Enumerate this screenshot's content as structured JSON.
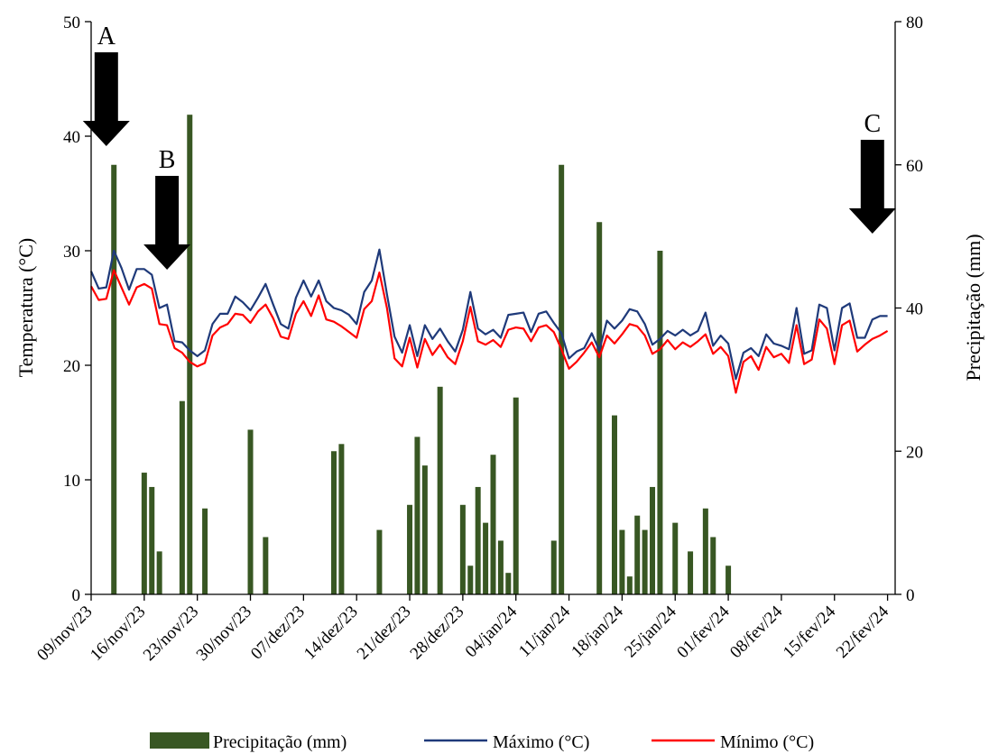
{
  "chart_data": {
    "type": "bar+line",
    "ylabel_left": "Temperatura  (°C)",
    "ylabel_right": "Precipitação (mm)",
    "left_axis": {
      "min": 0,
      "max": 50,
      "ticks": [
        0,
        10,
        20,
        30,
        40,
        50
      ],
      "tick_labels": [
        "0",
        "10",
        "20",
        "30",
        "40",
        "50"
      ]
    },
    "right_axis": {
      "min": 0,
      "max": 80,
      "ticks": [
        0,
        20,
        40,
        60,
        80
      ],
      "tick_labels": [
        "0",
        "20",
        "40",
        "60",
        "80"
      ]
    },
    "x_axis": {
      "start_date": "2023-11-09",
      "end_date": "2024-02-23",
      "tick_labels": [
        "09/nov/23",
        "16/nov/23",
        "23/nov/23",
        "30/nov/23",
        "07/dez/23",
        "14/dez/23",
        "21/dez/23",
        "28/dez/23",
        "04/jan/24",
        "11/jan/24",
        "18/jan/24",
        "25/jan/24",
        "01/fev/24",
        "08/fev/24",
        "15/fev/24",
        "22/fev/24"
      ],
      "tick_dates": [
        "2023-11-09",
        "2023-11-16",
        "2023-11-23",
        "2023-11-30",
        "2023-12-07",
        "2023-12-14",
        "2023-12-21",
        "2023-12-28",
        "2024-01-04",
        "2024-01-11",
        "2024-01-18",
        "2024-01-25",
        "2024-02-01",
        "2024-02-08",
        "2024-02-15",
        "2024-02-22"
      ]
    },
    "series": [
      {
        "name": "Precipitação (mm)",
        "type": "bar",
        "axis": "right",
        "color": "#385723",
        "points": [
          {
            "date": "2023-11-12",
            "value": 60
          },
          {
            "date": "2023-11-16",
            "value": 17
          },
          {
            "date": "2023-11-17",
            "value": 15
          },
          {
            "date": "2023-11-18",
            "value": 6
          },
          {
            "date": "2023-11-21",
            "value": 27
          },
          {
            "date": "2023-11-22",
            "value": 67
          },
          {
            "date": "2023-11-24",
            "value": 12
          },
          {
            "date": "2023-11-30",
            "value": 23
          },
          {
            "date": "2023-12-02",
            "value": 8
          },
          {
            "date": "2023-12-11",
            "value": 20
          },
          {
            "date": "2023-12-12",
            "value": 21
          },
          {
            "date": "2023-12-17",
            "value": 9
          },
          {
            "date": "2023-12-21",
            "value": 12.5
          },
          {
            "date": "2023-12-22",
            "value": 22
          },
          {
            "date": "2023-12-23",
            "value": 18
          },
          {
            "date": "2023-12-25",
            "value": 29
          },
          {
            "date": "2023-12-28",
            "value": 12.5
          },
          {
            "date": "2023-12-29",
            "value": 4
          },
          {
            "date": "2023-12-30",
            "value": 15
          },
          {
            "date": "2023-12-31",
            "value": 10
          },
          {
            "date": "2024-01-01",
            "value": 19.5
          },
          {
            "date": "2024-01-02",
            "value": 7.5
          },
          {
            "date": "2024-01-03",
            "value": 3
          },
          {
            "date": "2024-01-04",
            "value": 27.5
          },
          {
            "date": "2024-01-09",
            "value": 7.5
          },
          {
            "date": "2024-01-10",
            "value": 60
          },
          {
            "date": "2024-01-15",
            "value": 52
          },
          {
            "date": "2024-01-17",
            "value": 25
          },
          {
            "date": "2024-01-18",
            "value": 9
          },
          {
            "date": "2024-01-19",
            "value": 2.5
          },
          {
            "date": "2024-01-20",
            "value": 11
          },
          {
            "date": "2024-01-21",
            "value": 9
          },
          {
            "date": "2024-01-22",
            "value": 15
          },
          {
            "date": "2024-01-23",
            "value": 48
          },
          {
            "date": "2024-01-25",
            "value": 10
          },
          {
            "date": "2024-01-27",
            "value": 6
          },
          {
            "date": "2024-01-29",
            "value": 12
          },
          {
            "date": "2024-01-30",
            "value": 8
          },
          {
            "date": "2024-02-01",
            "value": 4
          }
        ]
      },
      {
        "name": "Máximo (°C)",
        "type": "line",
        "axis": "left",
        "color": "#1f3a7a",
        "values": [
          28.2,
          26.7,
          26.8,
          30.0,
          28.5,
          26.6,
          28.4,
          28.4,
          27.9,
          25.0,
          25.3,
          22.1,
          22.0,
          21.3,
          20.8,
          21.3,
          23.6,
          24.5,
          24.5,
          26.0,
          25.5,
          24.8,
          25.9,
          27.1,
          25.3,
          23.6,
          23.2,
          25.9,
          27.4,
          26.0,
          27.4,
          25.6,
          25.0,
          24.8,
          24.4,
          23.6,
          26.4,
          27.4,
          30.1,
          26.2,
          22.5,
          21.1,
          23.5,
          20.8,
          23.5,
          22.3,
          23.2,
          22.1,
          21.2,
          23.1,
          26.4,
          23.2,
          22.7,
          23.1,
          22.4,
          24.4,
          24.5,
          24.6,
          22.9,
          24.5,
          24.7,
          23.7,
          22.8,
          20.6,
          21.2,
          21.5,
          22.8,
          21.3,
          23.9,
          23.2,
          23.9,
          24.9,
          24.7,
          23.6,
          21.8,
          22.3,
          23.0,
          22.6,
          23.1,
          22.6,
          23.0,
          24.6,
          21.7,
          22.6,
          21.9,
          18.8,
          21.1,
          21.5,
          20.8,
          22.7,
          21.9,
          21.7,
          21.4,
          25.0,
          21.0,
          21.3,
          25.3,
          25.0,
          21.3,
          25.0,
          25.4,
          22.4,
          22.4,
          24.0,
          24.3,
          24.3
        ]
      },
      {
        "name": "Mínimo (°C)",
        "type": "line",
        "axis": "left",
        "color": "#ff0000",
        "values": [
          26.9,
          25.7,
          25.8,
          28.3,
          26.8,
          25.3,
          26.8,
          27.1,
          26.7,
          23.6,
          23.5,
          21.5,
          21.1,
          20.3,
          19.9,
          20.2,
          22.6,
          23.3,
          23.6,
          24.5,
          24.4,
          23.7,
          24.7,
          25.3,
          24.1,
          22.5,
          22.3,
          24.5,
          25.6,
          24.3,
          26.1,
          24.0,
          23.8,
          23.4,
          22.9,
          22.4,
          24.9,
          25.6,
          28.1,
          25.0,
          20.6,
          19.9,
          22.4,
          19.8,
          22.3,
          20.9,
          21.8,
          20.7,
          20.1,
          22.1,
          25.1,
          22.1,
          21.8,
          22.2,
          21.6,
          23.1,
          23.3,
          23.2,
          22.1,
          23.3,
          23.5,
          22.9,
          21.4,
          19.7,
          20.3,
          21.1,
          22.0,
          20.7,
          22.6,
          21.9,
          22.7,
          23.6,
          23.4,
          22.6,
          21.0,
          21.4,
          22.2,
          21.4,
          22.0,
          21.6,
          22.1,
          22.7,
          21.0,
          21.6,
          20.8,
          17.6,
          20.3,
          20.8,
          19.6,
          21.6,
          20.7,
          21.0,
          20.2,
          23.5,
          20.1,
          20.5,
          24.0,
          23.2,
          20.1,
          23.5,
          23.9,
          21.2,
          21.8,
          22.3,
          22.6,
          23.0
        ]
      }
    ],
    "annotations": [
      {
        "label": "A",
        "date": "2023-11-11"
      },
      {
        "label": "B",
        "date": "2023-11-19"
      },
      {
        "label": "C",
        "date": "2024-02-20"
      }
    ],
    "legend_position": "bottom",
    "grid": false
  }
}
